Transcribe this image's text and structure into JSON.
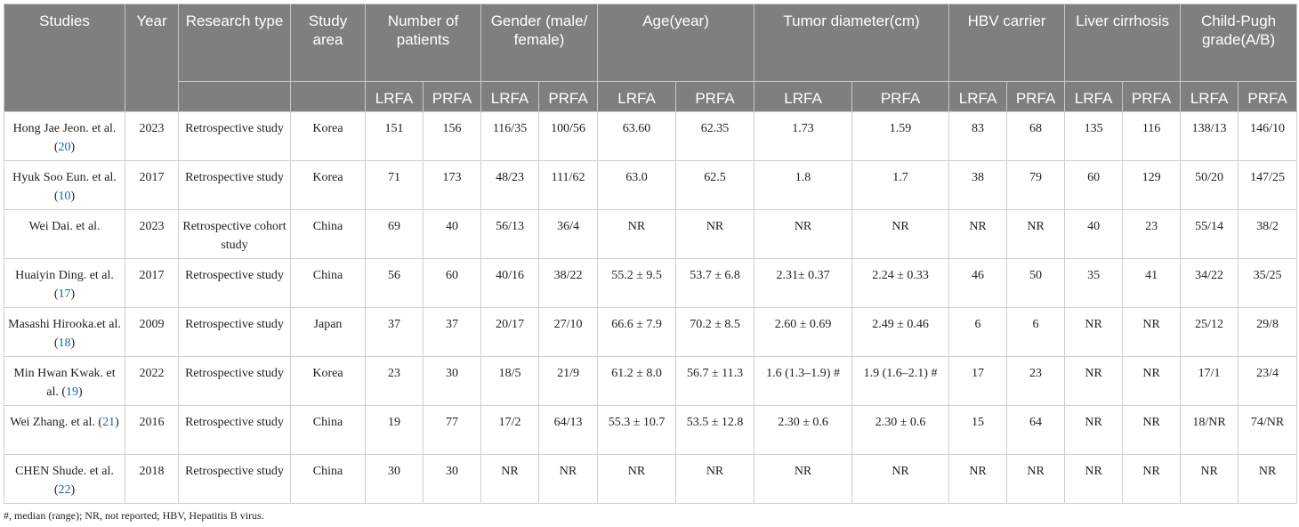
{
  "headers": {
    "studies": "Studies",
    "year": "Year",
    "research_type": "Research type",
    "study_area": "Study area",
    "groups": [
      "Number of patients",
      "Gender (male/ female)",
      "Age(year)",
      "Tumor diameter(cm)",
      "HBV carrier",
      "Liver cirrhosis",
      "Child-Pugh grade(A/B)"
    ],
    "subheaders": [
      "LRFA",
      "PRFA"
    ]
  },
  "rows": [
    {
      "study": "Hong Jae Jeon. et al. (",
      "ref": "20",
      "close": ")",
      "year": "2023",
      "type": "Retrospective study",
      "area": "Korea",
      "vals": [
        "151",
        "156",
        "116/35",
        "100/56",
        "63.60",
        "62.35",
        "1.73",
        "1.59",
        "83",
        "68",
        "135",
        "116",
        "138/13",
        "146/10"
      ]
    },
    {
      "study": "Hyuk Soo Eun. et al. (",
      "ref": "10",
      "close": ")",
      "year": "2017",
      "type": "Retrospective study",
      "area": "Korea",
      "vals": [
        "71",
        "173",
        "48/23",
        "111/62",
        "63.0",
        "62.5",
        "1.8",
        "1.7",
        "38",
        "79",
        "60",
        "129",
        "50/20",
        "147/25"
      ]
    },
    {
      "study": "Wei Dai. et al.",
      "ref": "",
      "close": "",
      "year": "2023",
      "type": "Retrospective cohort study",
      "area": "China",
      "vals": [
        "69",
        "40",
        "56/13",
        "36/4",
        "NR",
        "NR",
        "NR",
        "NR",
        "NR",
        "NR",
        "40",
        "23",
        "55/14",
        "38/2"
      ]
    },
    {
      "study": "Huaiyin Ding. et al. (",
      "ref": "17",
      "close": ")",
      "year": "2017",
      "type": "Retrospective study",
      "area": "China",
      "vals": [
        "56",
        "60",
        "40/16",
        "38/22",
        "55.2 ± 9.5",
        "53.7 ± 6.8",
        "2.31± 0.37",
        "2.24 ± 0.33",
        "46",
        "50",
        "35",
        "41",
        "34/22",
        "35/25"
      ]
    },
    {
      "study": "Masashi Hirooka.et al. (",
      "ref": "18",
      "close": ")",
      "year": "2009",
      "type": "Retrospective study",
      "area": "Japan",
      "vals": [
        "37",
        "37",
        "20/17",
        "27/10",
        "66.6 ± 7.9",
        "70.2 ± 8.5",
        "2.60 ± 0.69",
        "2.49 ± 0.46",
        "6",
        "6",
        "NR",
        "NR",
        "25/12",
        "29/8"
      ]
    },
    {
      "study": "Min Hwan Kwak. et al. (",
      "ref": "19",
      "close": ")",
      "year": "2022",
      "type": "Retrospective study",
      "area": "Korea",
      "vals": [
        "23",
        "30",
        "18/5",
        "21/9",
        "61.2 ± 8.0",
        "56.7 ± 11.3",
        "1.6 (1.3–1.9) #",
        "1.9 (1.6–2.1) #",
        "17",
        "23",
        "NR",
        "NR",
        "17/1",
        "23/4"
      ]
    },
    {
      "study": "Wei Zhang. et al. (",
      "ref": "21",
      "close": ")",
      "year": "2016",
      "type": "Retrospective study",
      "area": "China",
      "vals": [
        "19",
        "77",
        "17/2",
        "64/13",
        "55.3 ± 10.7",
        "53.5 ± 12.8",
        "2.30 ± 0.6",
        "2.30 ± 0.6",
        "15",
        "64",
        "NR",
        "NR",
        "18/NR",
        "74/NR"
      ]
    },
    {
      "study": "CHEN Shude. et al. (",
      "ref": "22",
      "close": ")",
      "year": "2018",
      "type": "Retrospective study",
      "area": "China",
      "vals": [
        "30",
        "30",
        "NR",
        "NR",
        "NR",
        "NR",
        "NR",
        "NR",
        "NR",
        "NR",
        "NR",
        "NR",
        "NR",
        "NR"
      ]
    }
  ],
  "footnote": "#, median (range); NR, not reported; HBV, Hepatitis B virus."
}
